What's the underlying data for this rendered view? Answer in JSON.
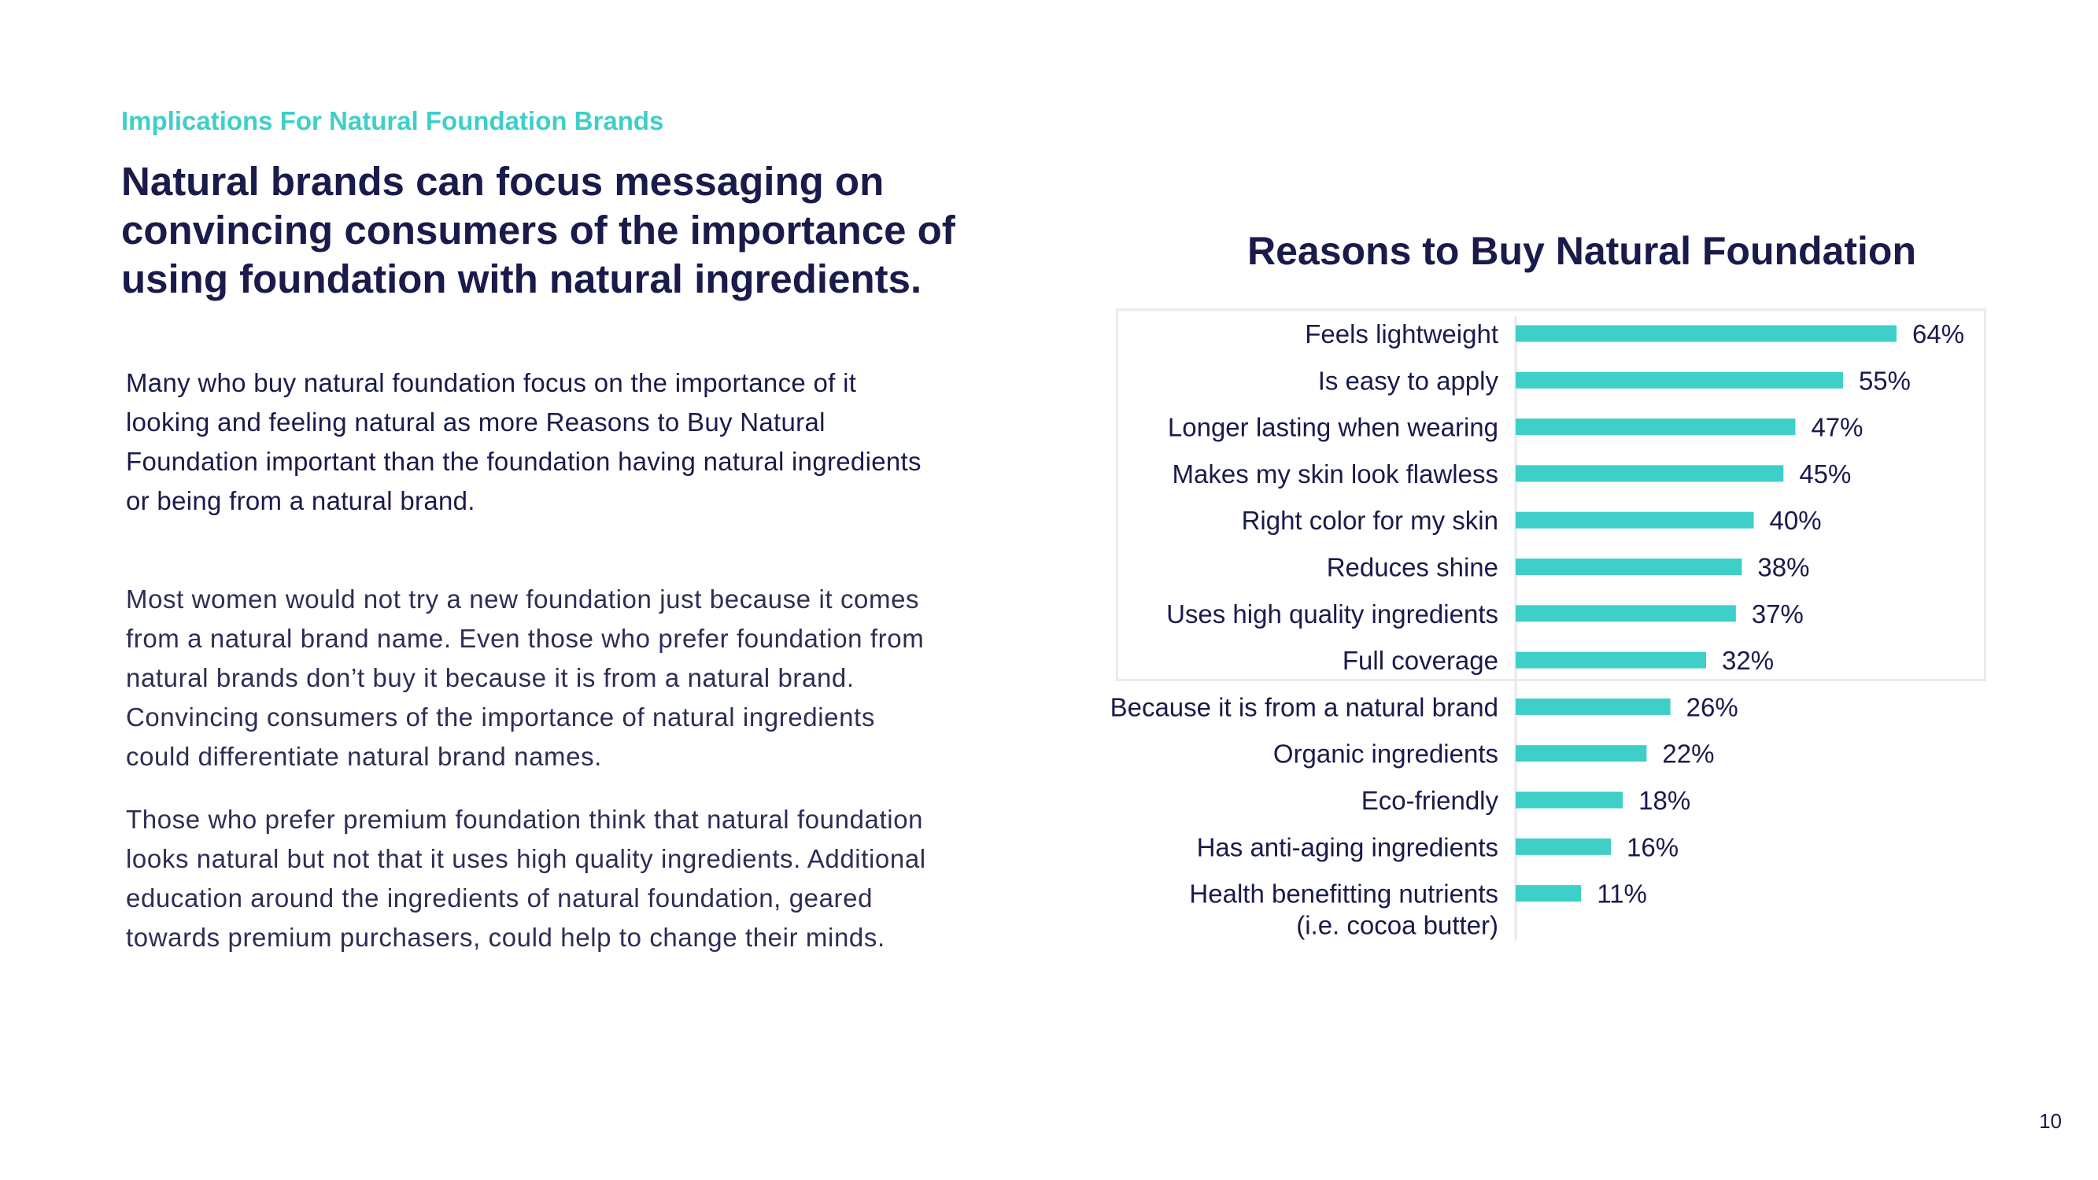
{
  "page": {
    "eyebrow": "Implications For Natural Foundation Brands",
    "headline": "Natural brands can focus messaging on convincing consumers of the importance of using foundation with natural ingredients.",
    "lead": "Many who buy natural foundation focus on the importance of it looking and feeling natural as more Reasons to Buy Natural Foundation important than the foundation having natural ingredients or being from a natural brand.",
    "paragraph_1": "Most women would not try a new foundation just because it comes from a natural brand name. Even those who prefer foundation from natural brands don’t buy it because it is from a natural brand. Convincing consumers of the importance of natural ingredients could differentiate natural brand names.",
    "paragraph_2": "Those who prefer premium foundation think that natural foundation looks natural but not that it uses high quality ingredients. Additional education around the ingredients of natural foundation, geared towards premium purchasers, could help to change their minds.",
    "page_number": "10"
  },
  "chart_data": {
    "type": "bar",
    "orientation": "horizontal",
    "title": "Reasons to Buy Natural Foundation",
    "categories": [
      "Feels lightweight",
      "Is easy to apply",
      "Longer lasting when wearing",
      "Makes my skin look flawless",
      "Right color for my skin",
      "Reduces shine",
      "Uses high quality ingredients",
      "Full coverage",
      "Because it is from a natural brand",
      "Organic ingredients",
      "Eco-friendly",
      "Has anti-aging ingredients",
      "Health benefitting nutrients\n(i.e. cocoa butter)"
    ],
    "values": [
      64,
      55,
      47,
      45,
      40,
      38,
      37,
      32,
      26,
      22,
      18,
      16,
      11
    ],
    "value_labels": [
      "64%",
      "55%",
      "47%",
      "45%",
      "40%",
      "38%",
      "37%",
      "32%",
      "26%",
      "22%",
      "18%",
      "16%",
      "11%"
    ],
    "value_unit": "%",
    "xlim": [
      0,
      64
    ],
    "grid": false,
    "legend": "none",
    "highlight_box": "first 8 categories",
    "colors": {
      "bar": "#3ecfc8",
      "text": "#191b4b",
      "axis": "#e6e8ec",
      "box": "#e9ecef"
    }
  }
}
